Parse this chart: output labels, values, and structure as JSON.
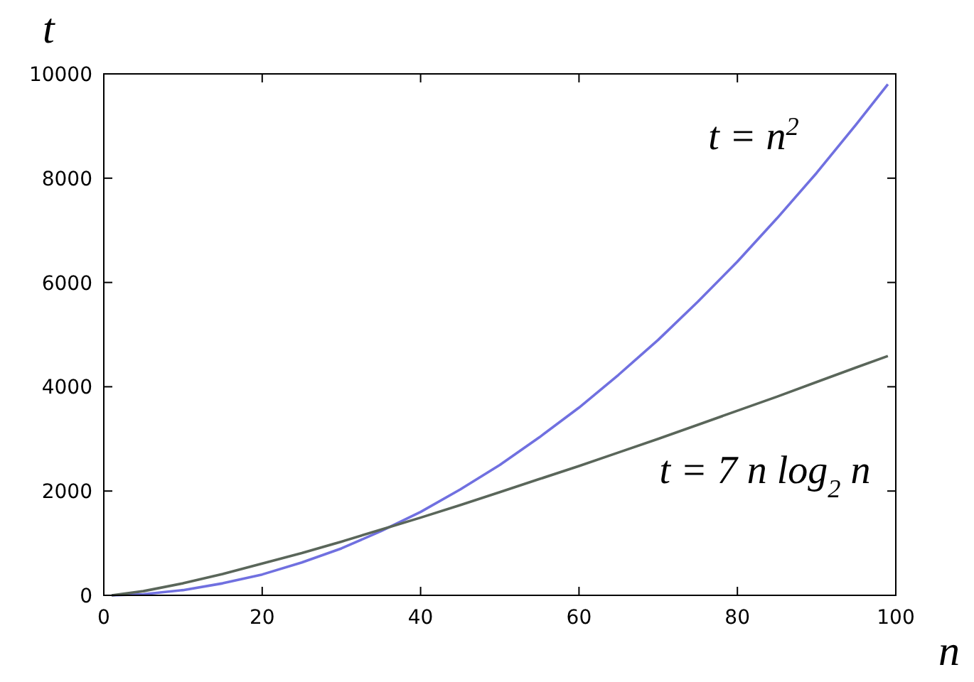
{
  "chart_data": {
    "type": "line",
    "xlabel": "n",
    "ylabel": "t",
    "xlim": [
      0,
      100
    ],
    "ylim": [
      0,
      10000
    ],
    "xticks": [
      0,
      20,
      40,
      60,
      80,
      100
    ],
    "yticks": [
      0,
      2000,
      4000,
      6000,
      8000,
      10000
    ],
    "grid": false,
    "marker": "none",
    "line_style": "solid",
    "series": [
      {
        "color": "#7070e0",
        "x": [
          1,
          5,
          10,
          15,
          20,
          25,
          30,
          35,
          40,
          45,
          50,
          55,
          60,
          65,
          70,
          75,
          80,
          85,
          90,
          95,
          99
        ],
        "values": [
          0,
          20,
          100,
          230,
          400,
          630,
          900,
          1230,
          1600,
          2030,
          2500,
          3030,
          3600,
          4230,
          4900,
          5630,
          6400,
          7230,
          8100,
          9030,
          9800
        ]
      },
      {
        "color": "#5a665a",
        "x": [
          1,
          5,
          10,
          15,
          20,
          25,
          30,
          35,
          40,
          45,
          50,
          55,
          60,
          65,
          70,
          75,
          80,
          85,
          90,
          95,
          99
        ],
        "values": [
          0,
          80,
          230,
          410,
          610,
          810,
          1030,
          1260,
          1490,
          1730,
          1980,
          2230,
          2480,
          2740,
          3000,
          3270,
          3540,
          3810,
          4090,
          4370,
          4590
        ]
      }
    ],
    "annotations": [
      "t = n$^{2}$",
      "t = 7 n log$_{2}$ n"
    ]
  }
}
